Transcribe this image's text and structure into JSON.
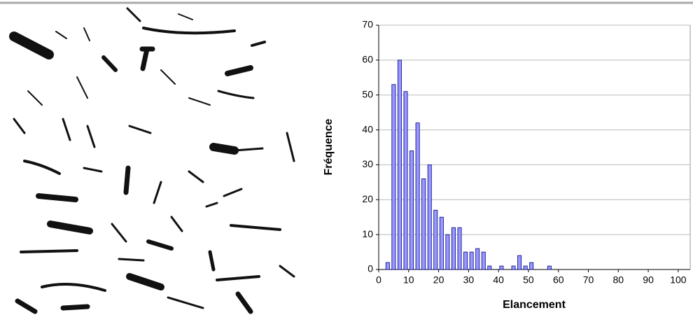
{
  "chart_data": {
    "type": "bar",
    "x": [
      3,
      5,
      7,
      9,
      11,
      13,
      15,
      17,
      19,
      21,
      23,
      25,
      27,
      29,
      31,
      33,
      35,
      37,
      39,
      41,
      43,
      45,
      47,
      49,
      51,
      53,
      55,
      57
    ],
    "values": [
      2,
      53,
      60,
      51,
      34,
      42,
      26,
      30,
      17,
      15,
      10,
      12,
      12,
      5,
      5,
      6,
      5,
      1,
      0,
      1,
      0,
      1,
      4,
      1,
      2,
      0,
      0,
      1
    ],
    "color": "#9999ff",
    "xlabel": "Elancement",
    "ylabel": "Fréquence",
    "xlim": [
      0,
      104
    ],
    "xticks": [
      0,
      10,
      20,
      30,
      40,
      50,
      60,
      70,
      80,
      90,
      100
    ],
    "ylim": [
      0,
      70
    ],
    "yticks": [
      0,
      10,
      20,
      30,
      40,
      50,
      60,
      70
    ],
    "grid": true
  }
}
